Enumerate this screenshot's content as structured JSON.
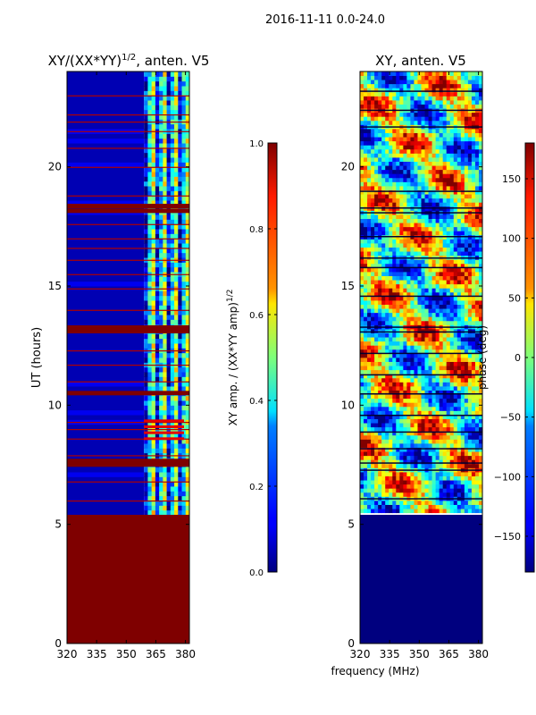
{
  "figure": {
    "suptitle": "2016-11-11 0.0-24.0"
  },
  "chart_data": [
    {
      "type": "heatmap",
      "title": "XY/(XX*YY)",
      "title_superscript": "1/2",
      "title_suffix": ", anten. V5",
      "xlabel": "",
      "ylabel": "UT (hours)",
      "xlim": [
        320,
        382
      ],
      "ylim": [
        0,
        24
      ],
      "xticks": [
        320,
        335,
        350,
        365,
        380
      ],
      "yticks": [
        0,
        5,
        10,
        15,
        20
      ],
      "colorbar": {
        "label": "XY amp. / (XX*YY amp)",
        "label_superscript": "1/2",
        "range": [
          0.0,
          1.0
        ],
        "ticks": [
          "0.0",
          "0.2",
          "0.4",
          "0.6",
          "0.8",
          "1.0"
        ],
        "colormap": "jet"
      },
      "regions": [
        {
          "description": "saturated block",
          "ut_start": 0,
          "ut_end": 5.4,
          "value": 1.0
        },
        {
          "description": "low amplitude band",
          "freq_start": 320,
          "freq_end": 359,
          "value": 0.05
        },
        {
          "description": "high-frequency striped band",
          "freq_start": 359,
          "freq_end": 382,
          "value": 0.35
        }
      ],
      "flagged_rows_ut": [
        7.45,
        7.6,
        10.45,
        13.05,
        13.2,
        18.1,
        18.3
      ]
    },
    {
      "type": "heatmap",
      "title": "XY, anten. V5",
      "xlabel": "frequency (MHz)",
      "ylabel": "",
      "xlim": [
        320,
        382
      ],
      "ylim": [
        0,
        24
      ],
      "xticks": [
        320,
        335,
        350,
        365,
        380
      ],
      "yticks": [
        0,
        5,
        10,
        15,
        20
      ],
      "colorbar": {
        "label": "phase (deg)",
        "range": [
          -180,
          180
        ],
        "ticks": [
          "−150",
          "−100",
          "−50",
          "0",
          "50",
          "100",
          "150"
        ],
        "colormap": "jet"
      },
      "regions": [
        {
          "description": "flagged block",
          "ut_start": 0,
          "ut_end": 5.4,
          "value": -180
        },
        {
          "description": "noisy phase",
          "ut_start": 5.4,
          "ut_end": 24,
          "value_range": [
            -180,
            180
          ]
        }
      ]
    }
  ],
  "colors": {
    "jet_dark_blue": "#00007f",
    "jet_dark_red": "#7f0000"
  }
}
